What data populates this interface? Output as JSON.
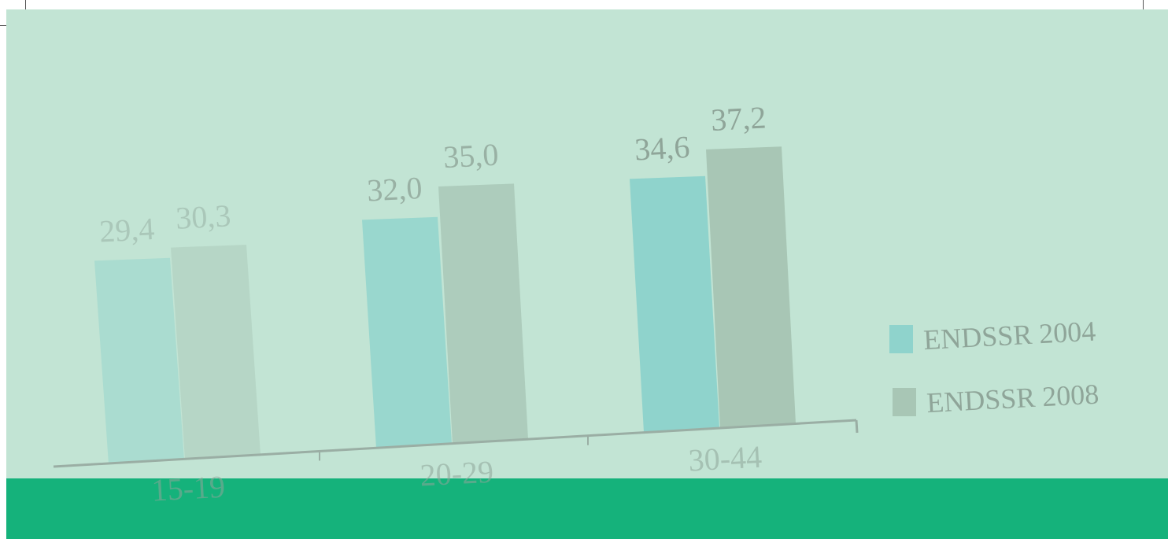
{
  "chart_data": {
    "type": "bar",
    "title": "",
    "xlabel": "",
    "ylabel": "",
    "categories": [
      "15-19",
      "20-29",
      "30-44"
    ],
    "series": [
      {
        "name": "ENDSSR 2004",
        "values": [
          29.4,
          32.0,
          34.6
        ],
        "color": "#8fd3cc"
      },
      {
        "name": "ENDSSR 2008",
        "values": [
          30.3,
          35.0,
          37.2
        ],
        "color": "#a8c6b5"
      }
    ],
    "value_labels": {
      "ENDSSR 2004": [
        "29,4",
        "32,0",
        "34,6"
      ],
      "ENDSSR 2008": [
        "30,3",
        "35,0",
        "37,2"
      ]
    },
    "legend_position": "right",
    "grid": false
  },
  "colors": {
    "background": "#c2e4d4",
    "footer_band": "#15b27b",
    "axis": "#9aaea4",
    "label_text": "#8fa599"
  }
}
